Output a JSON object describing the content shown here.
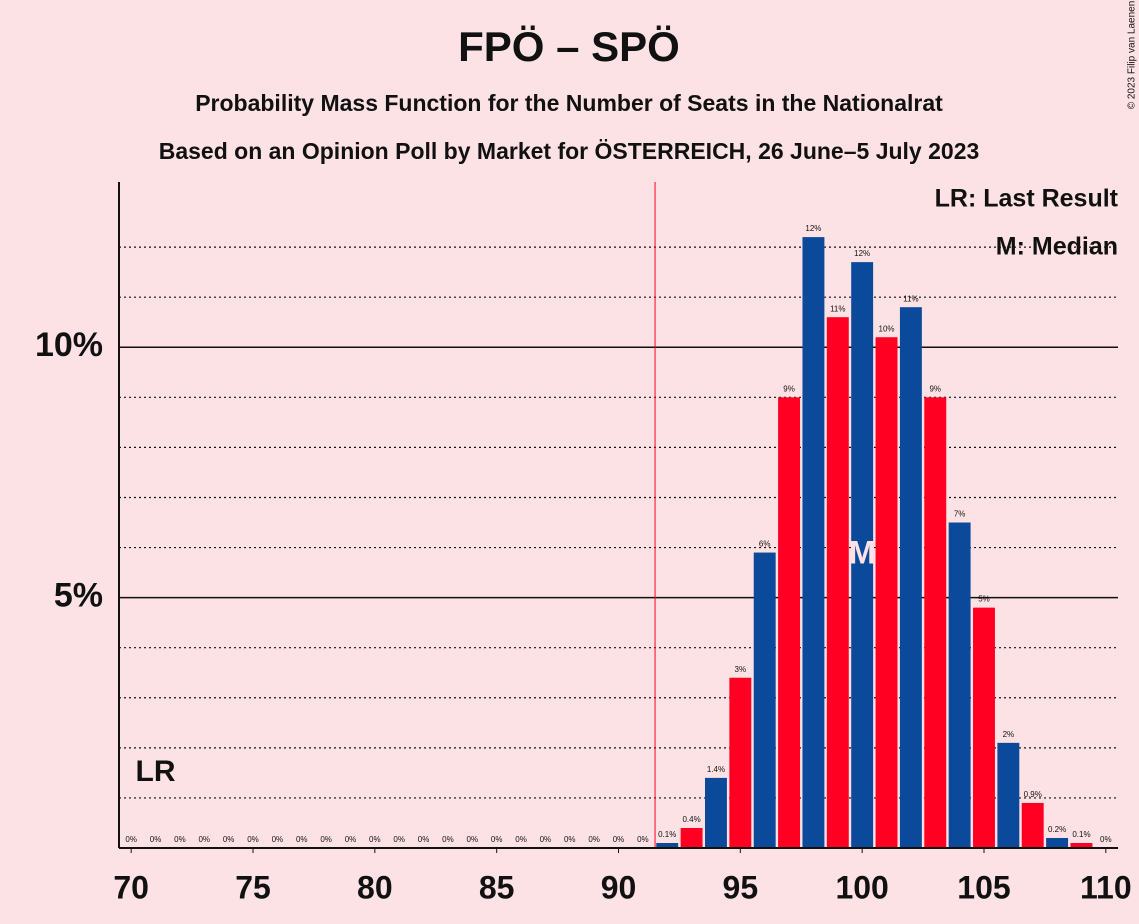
{
  "chart_data": {
    "type": "bar",
    "title": "FPÖ – SPÖ",
    "subtitle": "Probability Mass Function for the Number of Seats in the Nationalrat",
    "subtitle2": "Based on an Opinion Poll by Market for ÖSTERREICH, 26 June–5 July 2023",
    "copyright": "© 2023 Filip van Laenen",
    "categories": [
      70,
      71,
      72,
      73,
      74,
      75,
      76,
      77,
      78,
      79,
      80,
      81,
      82,
      83,
      84,
      85,
      86,
      87,
      88,
      89,
      90,
      91,
      92,
      93,
      94,
      95,
      96,
      97,
      98,
      99,
      100,
      101,
      102,
      103,
      104,
      105,
      106,
      107,
      108,
      109,
      110
    ],
    "values": [
      0,
      0,
      0,
      0,
      0,
      0,
      0,
      0,
      0,
      0,
      0,
      0,
      0,
      0,
      0,
      0,
      0,
      0,
      0,
      0,
      0,
      0,
      0.1,
      0.4,
      1.4,
      3.4,
      5.9,
      9.0,
      12.2,
      10.6,
      11.7,
      10.2,
      10.8,
      9.0,
      6.5,
      4.8,
      2.1,
      0.9,
      0.2,
      0.1,
      0
    ],
    "value_labels": [
      "0%",
      "0%",
      "0%",
      "0%",
      "0%",
      "0%",
      "0%",
      "0%",
      "0%",
      "0%",
      "0%",
      "0%",
      "0%",
      "0%",
      "0%",
      "0%",
      "0%",
      "0%",
      "0%",
      "0%",
      "0%",
      "0%",
      "0.1%",
      "0.4%",
      "1.4%",
      "3%",
      "6%",
      "9%",
      "12%",
      "11%",
      "12%",
      "10%",
      "11%",
      "9%",
      "7%",
      "5%",
      "2%",
      "0.9%",
      "0.2%",
      "0.1%",
      "0%"
    ],
    "bar_colors": [
      "#0b4a9b",
      "#ff0022"
    ],
    "xlim": [
      69.5,
      110.5
    ],
    "xticks": [
      70,
      75,
      80,
      85,
      90,
      95,
      100,
      105,
      110
    ],
    "ylim": [
      0,
      13.3
    ],
    "yticks": [
      {
        "value": 5,
        "label": "5%"
      },
      {
        "value": 10,
        "label": "10%"
      }
    ],
    "minor_yticks": [
      1,
      2,
      3,
      4,
      6,
      7,
      8,
      9,
      11,
      12
    ],
    "majority_line_x": 91.5,
    "last_result": 71,
    "last_result_label": "LR",
    "median": 100,
    "median_label": "M",
    "legend": [
      "LR: Last Result",
      "M: Median"
    ]
  }
}
